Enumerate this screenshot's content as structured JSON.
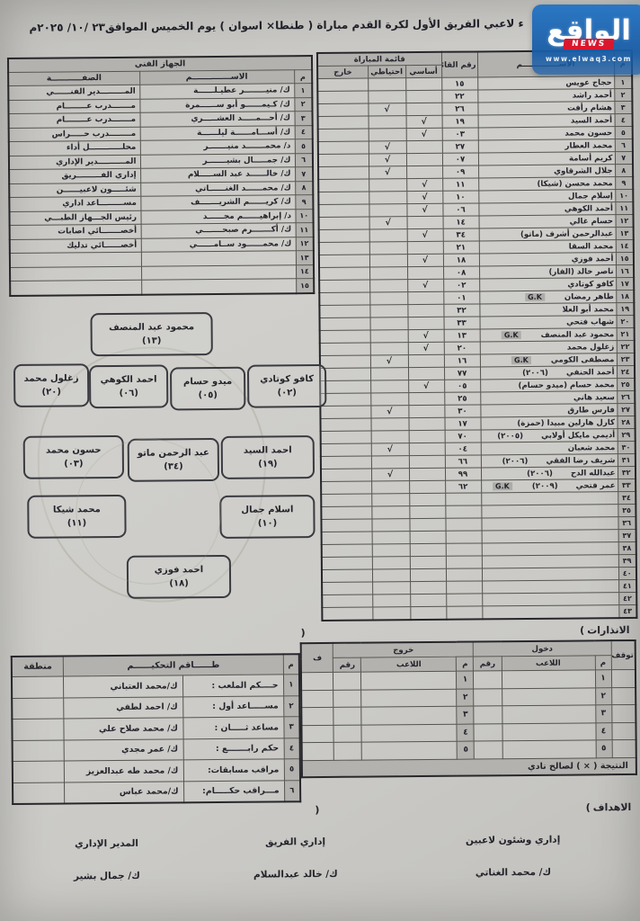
{
  "page_title": "ء لاعبي الفريق الأول لكرة القدم مباراة ( طنطا× اسوان ) يوم الخميس الموافق٢٣ /١٠/ ٢٠٢٥م",
  "logo": {
    "name": "الواقع",
    "badge": "NEWS",
    "url": "www.elwaq3.com"
  },
  "staff": {
    "title": "الجهاز الفني",
    "col_no": "م",
    "col_name": "الاســــــــــــــم",
    "col_role": "الصفـــــــــــة",
    "rows": [
      {
        "no": "١",
        "name": "ك/ منيــــــــر عطيـلــــــة",
        "role": "المـــــــــدير الفنــــــي"
      },
      {
        "no": "٢",
        "name": "ك/ كـيمــــــو أبو ســــــمرة",
        "role": "مـــــــدرب عــــــــام"
      },
      {
        "no": "٣",
        "name": "ك/ أحـــمـــــد العشـــــري",
        "role": "مـــــــدرب عــــــــام"
      },
      {
        "no": "٤",
        "name": "ك/ أســـامــــــة ليلــــــة",
        "role": "مــــــــدرب حـــــراس"
      },
      {
        "no": "٥",
        "name": "د/ محمـــــــد منيـــــــر",
        "role": "محلــــــــــــل أداء"
      },
      {
        "no": "٦",
        "name": "ك/ جمـــــال بشيـــــــر",
        "role": "المــــــــــدير الإداري"
      },
      {
        "no": "٧",
        "name": "ك/ خالــــــد عبد الســـــلام",
        "role": "إداري الفـــــــــريق"
      },
      {
        "no": "٨",
        "name": "ك/ محمــــــد الغنــــــاتي",
        "role": "شئـــــون لاعبيــــــن"
      },
      {
        "no": "٩",
        "name": "ك/ كريــــــم الشريـــــــف",
        "role": "مســـــــــاعد اداري"
      },
      {
        "no": "١٠",
        "name": "د/ إبراهيــــــم مجــــــد",
        "role": "رئيس الجـــهاز الطبـــي"
      },
      {
        "no": "١١",
        "name": "ك/ أكـــــــرم صبحـــــــي",
        "role": "أخصـــــــائي اصابات"
      },
      {
        "no": "١٢",
        "name": "ك/ محمــــــود ســامــــــي",
        "role": "أخصــــــائي تدليك"
      },
      {
        "no": "١٣",
        "name": "",
        "role": ""
      },
      {
        "no": "١٤",
        "name": "",
        "role": ""
      },
      {
        "no": "١٥",
        "name": "",
        "role": ""
      }
    ]
  },
  "players": {
    "col_no": "م",
    "col_name": "الاســــــــــــــم",
    "col_list": "رقم القائمة",
    "col_match": "قائمة المباراة",
    "col_basic": "أساسي",
    "col_reserve": "احتياطي",
    "col_out": "خارج",
    "gk_label": "G.K",
    "check": "√",
    "rows": [
      {
        "no": "١",
        "name": "حجاج عويس",
        "note": "",
        "gk": false,
        "list": "١٥",
        "mark": ""
      },
      {
        "no": "٢",
        "name": "أحمد راشد",
        "note": "",
        "gk": false,
        "list": "٢٢",
        "mark": ""
      },
      {
        "no": "٣",
        "name": "هشام رأفت",
        "note": "",
        "gk": false,
        "list": "٢٦",
        "mark": "r"
      },
      {
        "no": "٤",
        "name": "أحمد السيد",
        "note": "",
        "gk": false,
        "list": "١٩",
        "mark": "s"
      },
      {
        "no": "٥",
        "name": "حسون محمد",
        "note": "",
        "gk": false,
        "list": "٠٣",
        "mark": "s"
      },
      {
        "no": "٦",
        "name": "محمد العطار",
        "note": "",
        "gk": false,
        "list": "٢٧",
        "mark": "r"
      },
      {
        "no": "٧",
        "name": "كريم أسامة",
        "note": "",
        "gk": false,
        "list": "٠٧",
        "mark": "r"
      },
      {
        "no": "٨",
        "name": "جلال الشرقاوي",
        "note": "",
        "gk": false,
        "list": "٠٩",
        "mark": "r"
      },
      {
        "no": "٩",
        "name": "محمد محسن (شيكا)",
        "note": "",
        "gk": false,
        "list": "١١",
        "mark": "s"
      },
      {
        "no": "١٠",
        "name": "إسلام جمال",
        "note": "",
        "gk": false,
        "list": "١٠",
        "mark": "s"
      },
      {
        "no": "١١",
        "name": "أحمد الكوهي",
        "note": "",
        "gk": false,
        "list": "٠٦",
        "mark": "s"
      },
      {
        "no": "١٢",
        "name": "حسام غالي",
        "note": "",
        "gk": false,
        "list": "١٤",
        "mark": "r"
      },
      {
        "no": "١٣",
        "name": "عبدالرحمن أشرف (ماتو)",
        "note": "",
        "gk": false,
        "list": "٣٤",
        "mark": "s"
      },
      {
        "no": "١٤",
        "name": "محمد السقا",
        "note": "",
        "gk": false,
        "list": "٢١",
        "mark": ""
      },
      {
        "no": "١٥",
        "name": "أحمد فوزي",
        "note": "",
        "gk": false,
        "list": "١٨",
        "mark": "s"
      },
      {
        "no": "١٦",
        "name": "ناصر خالد (الفار)",
        "note": "",
        "gk": false,
        "list": "٠٨",
        "mark": ""
      },
      {
        "no": "١٧",
        "name": "كافو كوتادي",
        "note": "",
        "gk": false,
        "list": "٠٢",
        "mark": "s"
      },
      {
        "no": "١٨",
        "name": "طاهر رمضان",
        "note": "",
        "gk": true,
        "list": "٠١",
        "mark": ""
      },
      {
        "no": "١٩",
        "name": "محمد أبو العلا",
        "note": "",
        "gk": false,
        "list": "٣٢",
        "mark": ""
      },
      {
        "no": "٢٠",
        "name": "شهاب فتحي",
        "note": "",
        "gk": false,
        "list": "٣٣",
        "mark": ""
      },
      {
        "no": "٢١",
        "name": "محمود عبد المنصف",
        "note": "",
        "gk": true,
        "list": "١٣",
        "mark": "s"
      },
      {
        "no": "٢٢",
        "name": "زغلول محمد",
        "note": "",
        "gk": false,
        "list": "٢٠",
        "mark": "s"
      },
      {
        "no": "٢٣",
        "name": "مصطفى الكومي",
        "note": "",
        "gk": true,
        "list": "١٦",
        "mark": "r"
      },
      {
        "no": "٢٤",
        "name": "أحمد الحنفي",
        "note": "(٢٠٠٦)",
        "gk": false,
        "list": "٧٧",
        "mark": ""
      },
      {
        "no": "٢٥",
        "name": "محمد حسام (ميدو حسام)",
        "note": "",
        "gk": false,
        "list": "٠٥",
        "mark": "s"
      },
      {
        "no": "٢٦",
        "name": "سعيد هاني",
        "note": "",
        "gk": false,
        "list": "٢٥",
        "mark": ""
      },
      {
        "no": "٢٧",
        "name": "فارس طارق",
        "note": "",
        "gk": false,
        "list": "٣٠",
        "mark": "r"
      },
      {
        "no": "٢٨",
        "name": "كارل هارلين مبيدا (حمزة)",
        "note": "",
        "gk": false,
        "list": "١٧",
        "mark": ""
      },
      {
        "no": "٢٩",
        "name": "أديمي مايكل أولابي",
        "note": "(٢٠٠٥)",
        "gk": false,
        "list": "٧٠",
        "mark": ""
      },
      {
        "no": "٣٠",
        "name": "محمد شعبان",
        "note": "",
        "gk": false,
        "list": "٠٤",
        "mark": "r"
      },
      {
        "no": "٣١",
        "name": "شريف رضا الفقي",
        "note": "(٢٠٠٦)",
        "gk": false,
        "list": "٦٦",
        "mark": ""
      },
      {
        "no": "٣٢",
        "name": "عبدالله الدح",
        "note": "(٢٠٠٦)",
        "gk": false,
        "list": "٩٩",
        "mark": "r"
      },
      {
        "no": "٣٣",
        "name": "عمر فتحي",
        "note": "(٢٠٠٩)",
        "gk": true,
        "list": "٦٢",
        "mark": ""
      },
      {
        "no": "٣٤",
        "name": "",
        "note": "",
        "gk": false,
        "list": "",
        "mark": ""
      },
      {
        "no": "٣٥",
        "name": "",
        "note": "",
        "gk": false,
        "list": "",
        "mark": ""
      },
      {
        "no": "٣٦",
        "name": "",
        "note": "",
        "gk": false,
        "list": "",
        "mark": ""
      },
      {
        "no": "٣٧",
        "name": "",
        "note": "",
        "gk": false,
        "list": "",
        "mark": ""
      },
      {
        "no": "٣٨",
        "name": "",
        "note": "",
        "gk": false,
        "list": "",
        "mark": ""
      },
      {
        "no": "٣٩",
        "name": "",
        "note": "",
        "gk": false,
        "list": "",
        "mark": ""
      },
      {
        "no": "٤٠",
        "name": "",
        "note": "",
        "gk": false,
        "list": "",
        "mark": ""
      },
      {
        "no": "٤١",
        "name": "",
        "note": "",
        "gk": false,
        "list": "",
        "mark": ""
      },
      {
        "no": "٤٢",
        "name": "",
        "note": "",
        "gk": false,
        "list": "",
        "mark": ""
      },
      {
        "no": "٤٣",
        "name": "",
        "note": "",
        "gk": false,
        "list": "",
        "mark": ""
      }
    ]
  },
  "formation": {
    "players": [
      {
        "name": "محمود عبد المنصف",
        "num": "(١٣)"
      },
      {
        "name": "كافو كوتادي",
        "num": "(٠٢)"
      },
      {
        "name": "ميدو حسام",
        "num": "(٠٥)"
      },
      {
        "name": "احمد الكوهي",
        "num": "(٠٦)"
      },
      {
        "name": "زغلول محمد",
        "num": "(٢٠)"
      },
      {
        "name": "احمد السيد",
        "num": "(١٩)"
      },
      {
        "name": "عبد الرحمن ماتو",
        "num": "(٣٤)"
      },
      {
        "name": "حسون محمد",
        "num": "(٠٣)"
      },
      {
        "name": "اسلام جمال",
        "num": "(١٠)"
      },
      {
        "name": "محمد شيكا",
        "num": "(١١)"
      },
      {
        "name": "احمد فوزي",
        "num": "(١٨)"
      }
    ]
  },
  "labels": {
    "warnings": "الانذارات",
    "goals": "الاهداف",
    "open": "(",
    "close": ")"
  },
  "subs": {
    "col_stop": "توقف",
    "col_in": "دخول",
    "col_out": "خروج",
    "col_no": "م",
    "col_player": "اللاعب",
    "col_num": "رقم",
    "col_f": "ف",
    "row_nos": [
      "١",
      "٢",
      "٣",
      "٤",
      "٥"
    ],
    "result": "النتيجة ( × ) لصالح نادي"
  },
  "referees": {
    "col_no": "م",
    "col_crew": "طــــــاقم التحكيــــــم",
    "col_zone": "منطقة",
    "rows": [
      {
        "no": "١",
        "role": "حــــكم الملعب :",
        "name": "ك/محمد العتباني"
      },
      {
        "no": "٢",
        "role": "مســـــاعد أول :",
        "name": "ك/ احمد لطفي"
      },
      {
        "no": "٣",
        "role": "مساعد ثـــــان :",
        "name": "ك/ محمد صلاح علي"
      },
      {
        "no": "٤",
        "role": "حكم رابـــــــع :",
        "name": "ك/ عمر مجدي"
      },
      {
        "no": "٥",
        "role": "مراقب مسابقات:",
        "name": "ك/ محمد طه عبدالعزيز"
      },
      {
        "no": "٦",
        "role": "مـــراقب حكـــــام:",
        "name": "ك/محمد عباس"
      }
    ]
  },
  "signatures": [
    {
      "title": "إداري وشئون لاعبين",
      "name": "ك/ محمد الغناتي"
    },
    {
      "title": "إداري الفريق",
      "name": "ك/ خالد عبدالسلام"
    },
    {
      "title": "المدير الإداري",
      "name": "ك/ جمال بشير"
    }
  ]
}
